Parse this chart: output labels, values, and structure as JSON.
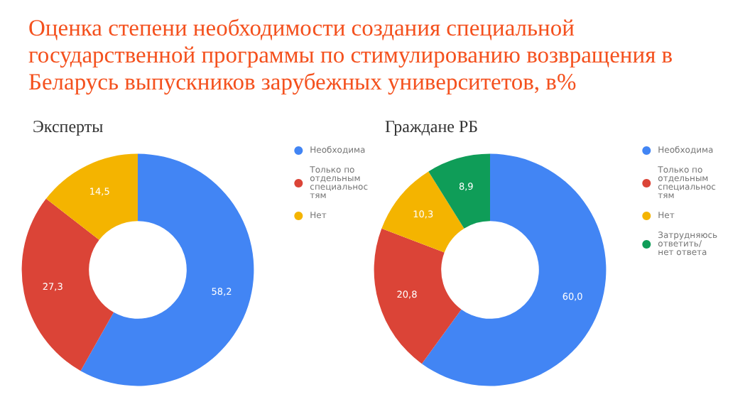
{
  "chart_data": [
    {
      "type": "other",
      "title": "Оценка степени необходимости создания специальной государственной программы по стимулированию возвращения в Беларусь выпускников зарубежных университетов, в%"
    },
    {
      "type": "donut",
      "title": "Эксперты",
      "categories": [
        "Необходима",
        "Только по отдельным специальностям",
        "Нет"
      ],
      "values": [
        58.2,
        27.3,
        14.5
      ],
      "colors": [
        "#4285f4",
        "#db4437",
        "#f4b400"
      ],
      "value_labels": [
        "58,2",
        "27,3",
        "14,5"
      ],
      "legend": "right"
    },
    {
      "type": "donut",
      "title": "Граждане РБ",
      "categories": [
        "Необходима",
        "Только по отдельным специальностям",
        "Нет",
        "Затрудняюсь ответить/ нет ответа"
      ],
      "values": [
        60.0,
        20.8,
        10.3,
        8.9
      ],
      "colors": [
        "#4285f4",
        "#db4437",
        "#f4b400",
        "#0f9d58"
      ],
      "value_labels": [
        "60,0",
        "20,8",
        "10,3",
        "8,9"
      ],
      "legend": "right"
    }
  ]
}
